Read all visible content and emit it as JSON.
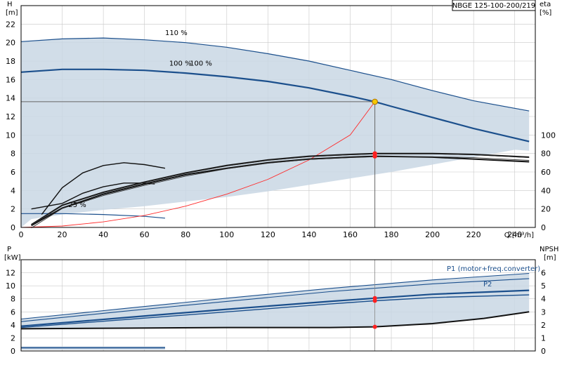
{
  "chart_data": [
    {
      "type": "line",
      "x_axis": {
        "title": "Q [m³/h]",
        "range": [
          0,
          250
        ],
        "ticks": [
          0,
          20,
          40,
          60,
          80,
          100,
          120,
          140,
          160,
          180,
          200,
          220,
          240
        ],
        "grid": true
      },
      "y_axis_left": {
        "title": "H",
        "unit": "[m]",
        "range": [
          0,
          24
        ],
        "ticks": [
          0,
          2,
          4,
          6,
          8,
          10,
          12,
          14,
          16,
          18,
          20,
          22
        ],
        "grid": true
      },
      "y_axis_right": {
        "title": "eta",
        "unit": "[%]",
        "range": [
          0,
          100
        ],
        "ticks": [
          0,
          20,
          40,
          60,
          80,
          100
        ]
      },
      "legend_box": "NBGE 125-100-200/219",
      "curve_labels": [
        {
          "text": "110 %",
          "x": 70,
          "y": 20.8
        },
        {
          "text": "100 %",
          "x": 72,
          "y": 17.5
        },
        {
          "text": "100 %",
          "x": 82,
          "y": 17.5
        },
        {
          "text": "25 %",
          "x": 23,
          "y": 2.2
        }
      ],
      "operating_point": {
        "Q": 172,
        "H": 13.6
      },
      "series": [
        {
          "type": "area",
          "x": [
            0,
            10,
            20,
            40,
            60,
            80,
            100,
            120,
            140,
            160,
            180,
            200,
            220,
            247,
            247,
            240,
            220,
            200,
            180,
            160,
            140,
            120,
            100,
            80,
            60,
            40,
            20,
            5,
            0
          ],
          "y": [
            20.1,
            20.3,
            20.4,
            20.5,
            20.3,
            20.0,
            19.5,
            18.8,
            18.0,
            17.0,
            16.0,
            14.8,
            13.7,
            12.5,
            8.3,
            8.4,
            7.6,
            6.8,
            6.0,
            5.3,
            4.6,
            3.9,
            3.3,
            2.8,
            2.3,
            1.9,
            1.4,
            0.9,
            0
          ]
        },
        {
          "x": [
            0,
            20,
            40,
            60,
            80,
            100,
            120,
            140,
            160,
            180,
            200,
            220,
            247
          ],
          "y": [
            20.1,
            20.4,
            20.5,
            20.3,
            20.0,
            19.5,
            18.8,
            18.0,
            17.0,
            16.0,
            14.8,
            13.7,
            12.6
          ]
        },
        {
          "x": [
            0,
            20,
            40,
            60,
            80,
            100,
            120,
            140,
            160,
            172,
            180,
            200,
            220,
            247
          ],
          "y": [
            16.8,
            17.1,
            17.1,
            17.0,
            16.7,
            16.3,
            15.8,
            15.1,
            14.2,
            13.6,
            13.1,
            11.9,
            10.7,
            9.3
          ]
        },
        {
          "x": [
            0,
            20,
            40,
            60,
            70
          ],
          "y": [
            1.5,
            1.5,
            1.4,
            1.2,
            1.0
          ]
        },
        {
          "x": [
            0,
            20,
            40,
            60,
            80,
            100,
            120,
            140,
            160,
            172
          ],
          "y": [
            0,
            0.15,
            0.6,
            1.3,
            2.3,
            3.6,
            5.2,
            7.3,
            10.0,
            13.6
          ]
        },
        {
          "eta_percent": true,
          "x": [
            5,
            20,
            40,
            60,
            80,
            100,
            120,
            140,
            160,
            172,
            200,
            220,
            247
          ],
          "y": [
            3,
            24,
            38,
            49,
            59,
            67,
            73,
            77,
            79,
            80,
            80,
            79,
            76
          ]
        },
        {
          "eta_percent": true,
          "x": [
            5,
            20,
            40,
            60,
            80,
            100,
            120,
            140,
            160,
            172,
            200,
            220,
            247
          ],
          "y": [
            2,
            21,
            36,
            47,
            57,
            64,
            70,
            74,
            76,
            77,
            76,
            74,
            71
          ]
        },
        {
          "eta_percent": true,
          "x": [
            10,
            20,
            30,
            40,
            50,
            60,
            70
          ],
          "y": [
            14,
            43,
            59,
            67,
            70,
            68,
            64
          ]
        },
        {
          "eta_percent": true,
          "x": [
            5,
            20,
            30,
            40,
            50,
            60,
            65
          ],
          "y": [
            20,
            26,
            37,
            44,
            48,
            48,
            47
          ]
        }
      ]
    },
    {
      "type": "line",
      "x_axis": {
        "range": [
          0,
          250
        ]
      },
      "y_axis_left": {
        "title": "P",
        "unit": "[kW]",
        "range": [
          0,
          14
        ],
        "ticks": [
          0,
          2,
          4,
          6,
          8,
          10,
          12
        ],
        "grid": true
      },
      "y_axis_right": {
        "title": "NPSH",
        "unit": "[m]",
        "range": [
          0,
          7
        ],
        "ticks": [
          0,
          1,
          2,
          3,
          4,
          5,
          6
        ]
      },
      "series": [
        {
          "name": "P1 (motor+freq.converter)",
          "x": [
            0,
            50,
            100,
            150,
            200,
            247
          ],
          "y": [
            4.9,
            6.5,
            8.1,
            9.6,
            10.9,
            11.9
          ]
        },
        {
          "x": [
            0,
            50,
            100,
            150,
            200,
            247
          ],
          "y": [
            4.5,
            6.1,
            7.6,
            9.1,
            10.3,
            11.1
          ]
        },
        {
          "name": "P2",
          "x": [
            0,
            50,
            100,
            150,
            172,
            200,
            247
          ],
          "y": [
            3.8,
            5.1,
            6.4,
            7.6,
            8.1,
            8.7,
            9.3
          ]
        },
        {
          "x": [
            0,
            50,
            100,
            150,
            172,
            200,
            247
          ],
          "y": [
            3.6,
            4.8,
            6.0,
            7.2,
            7.7,
            8.2,
            8.6
          ]
        },
        {
          "x": [
            0,
            50,
            100,
            150,
            172,
            200,
            225,
            247
          ],
          "y": [
            3.4,
            3.5,
            3.6,
            3.6,
            3.7,
            4.2,
            5.0,
            6.0
          ]
        },
        {
          "x": [
            0,
            20,
            40,
            70
          ],
          "y": [
            0.5,
            0.5,
            0.5,
            0.5
          ]
        }
      ]
    }
  ]
}
